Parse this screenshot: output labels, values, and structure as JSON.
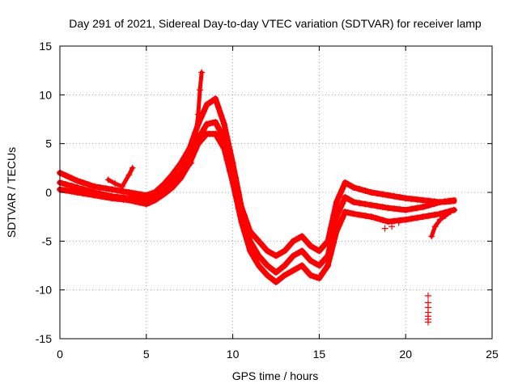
{
  "chart_data": {
    "type": "scatter",
    "title": "Day 291 of 2021, Sidereal Day-to-day VTEC variation (SDTVAR) for receiver lamp",
    "xlabel": "GPS time / hours",
    "ylabel": "SDTVAR / TECUs",
    "xlim": [
      0,
      25
    ],
    "ylim": [
      -15,
      15
    ],
    "xticks": [
      0,
      5,
      10,
      15,
      20,
      25
    ],
    "yticks": [
      -15,
      -10,
      -5,
      0,
      5,
      10,
      15
    ],
    "xtick_labels": [
      "0",
      "5",
      "10",
      "15",
      "20",
      "25"
    ],
    "ytick_labels": [
      "-15",
      "-10",
      "-5",
      "0",
      "5",
      "10",
      "15"
    ],
    "grid": true,
    "marker": "+",
    "color": "#ff0000",
    "series": [
      {
        "name": "track-1",
        "x": [
          0,
          1,
          2,
          3,
          4,
          5,
          5.5,
          6,
          6.5,
          7,
          7.5,
          8,
          8.5,
          9,
          9.5,
          10,
          10.5,
          11,
          11.5,
          12,
          12.5,
          13,
          13.5,
          14,
          14.5,
          15,
          15.5,
          16,
          16.5,
          17,
          18,
          19,
          20,
          21,
          22,
          22.8
        ],
        "y": [
          2,
          1.2,
          0.6,
          0.3,
          0,
          -0.3,
          0,
          0.8,
          1.8,
          3,
          4.5,
          7,
          9,
          9.6,
          7,
          3,
          -1.5,
          -4,
          -5,
          -6,
          -6.5,
          -6,
          -5,
          -4.5,
          -5.5,
          -6,
          -5,
          -1,
          1,
          0.5,
          0,
          -0.3,
          -0.6,
          -0.8,
          -1,
          -0.9
        ]
      },
      {
        "name": "track-2",
        "x": [
          0,
          1,
          2,
          3,
          4,
          5,
          5.5,
          6,
          6.5,
          7,
          7.5,
          8,
          8.5,
          9,
          9.5,
          10,
          10.5,
          11,
          11.5,
          12,
          12.5,
          13,
          13.5,
          14,
          14.5,
          15,
          15.5,
          16,
          16.5,
          17,
          18,
          19,
          20,
          21,
          22,
          22.8
        ],
        "y": [
          1,
          0.5,
          0,
          -0.4,
          -0.6,
          -0.8,
          -0.5,
          0,
          1,
          2,
          3.5,
          5.5,
          7,
          7.2,
          5.5,
          2,
          -2,
          -5,
          -6.5,
          -7.5,
          -8.2,
          -7.5,
          -6.5,
          -6,
          -7,
          -7.5,
          -6.5,
          -2.5,
          -0.5,
          -1,
          -1.3,
          -1.6,
          -1.8,
          -1.5,
          -1,
          -0.8
        ]
      },
      {
        "name": "track-3",
        "x": [
          0,
          1,
          2,
          3,
          4,
          5,
          5.5,
          6,
          6.5,
          7,
          7.5,
          8,
          8.5,
          9,
          9.5,
          10,
          10.5,
          11,
          11.5,
          12,
          12.5,
          13,
          13.5,
          14,
          14.5,
          15,
          15.5,
          16,
          16.5,
          17,
          18,
          19,
          20,
          21,
          22,
          22.8
        ],
        "y": [
          0.3,
          0,
          -0.3,
          -0.6,
          -0.8,
          -1.2,
          -0.8,
          -0.2,
          0.5,
          1.5,
          3,
          5,
          6,
          6,
          4.5,
          1,
          -3,
          -6,
          -7.5,
          -8.5,
          -9.2,
          -8.5,
          -8,
          -7.5,
          -8.5,
          -8.8,
          -7.5,
          -4,
          -2,
          -2.2,
          -2.5,
          -3,
          -2.8,
          -2.5,
          -2.2,
          -1.8
        ]
      }
    ],
    "extra_series": [
      {
        "name": "spike-8h",
        "x": [
          7.6,
          7.8,
          8.0,
          8.1,
          8.2
        ],
        "y": [
          3,
          5,
          8,
          10.5,
          12.3
        ]
      },
      {
        "name": "short-segment-3h",
        "x": [
          2.8,
          3.2,
          3.6,
          4.0,
          4.2
        ],
        "y": [
          1.3,
          0.9,
          0.6,
          1.8,
          2.5
        ]
      },
      {
        "name": "outlier-column-21h",
        "x": [
          21.3,
          21.3,
          21.3,
          21.3,
          21.3,
          21.3,
          21.3
        ],
        "y": [
          -10.6,
          -11.3,
          -11.8,
          -12.3,
          -12.7,
          -13.0,
          -13.3
        ]
      },
      {
        "name": "tail-22h",
        "x": [
          21.5,
          21.7,
          22.0,
          22.3,
          22.6,
          22.8
        ],
        "y": [
          -4.5,
          -3.5,
          -2.8,
          -2.4,
          -2.0,
          -1.8
        ]
      },
      {
        "name": "small-cluster-19h",
        "x": [
          18.8,
          19.2,
          19.6
        ],
        "y": [
          -3.7,
          -3.5,
          -3.1
        ]
      }
    ]
  }
}
